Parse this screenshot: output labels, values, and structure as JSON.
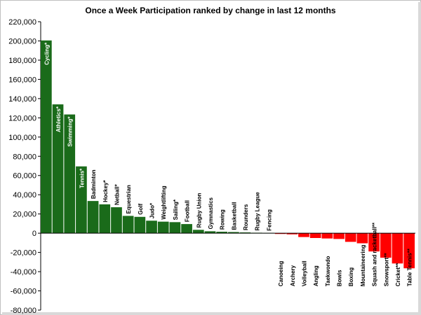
{
  "chart_data": {
    "type": "bar",
    "title": "Once a Week Participation ranked by change in last 12 months",
    "xlabel": "",
    "ylabel": "",
    "ylim": [
      -80000,
      220000
    ],
    "yticks": [
      220000,
      200000,
      180000,
      160000,
      140000,
      120000,
      100000,
      80000,
      60000,
      40000,
      20000,
      0,
      -20000,
      -40000,
      -60000,
      -80000
    ],
    "ytick_labels": [
      "220,000",
      "200,000",
      "180,000",
      "160,000",
      "140,000",
      "120,000",
      "100,000",
      "80,000",
      "60,000",
      "40,000",
      "20,000",
      "0",
      "-20,000",
      "-40,000",
      "-60,000",
      "-80,000"
    ],
    "grid": false,
    "legend": "none",
    "categories": [
      "Cycling*",
      "Athletics*",
      "Swimming*",
      "Tennis*",
      "Badminton",
      "Hockey*",
      "Netball*",
      "Equestrian",
      "Golf",
      "Judo*",
      "Weightlifting",
      "Sailing*",
      "Football",
      "Rugby Union",
      "Gymnastics",
      "Rowing",
      "Basketball",
      "Rounders",
      "Rugby League",
      "Fencing",
      "Canoeing",
      "Archery",
      "Volleyball",
      "Angling",
      "Taekwondo",
      "Bowls",
      "Boxing",
      "Mountaineering",
      "Squash and racketball**",
      "Snowsport**",
      "Cricket**",
      "Table Tennis**"
    ],
    "values": [
      200500,
      134000,
      123500,
      69500,
      33500,
      30000,
      27000,
      18000,
      17000,
      13000,
      12000,
      11500,
      9500,
      3500,
      2000,
      1500,
      1200,
      800,
      500,
      300,
      -800,
      -1200,
      -4000,
      -5000,
      -5500,
      -6000,
      -9000,
      -10500,
      -19000,
      -25500,
      -31500,
      -36500
    ],
    "colors": {
      "positive": "#1a6b1a",
      "negative": "#ff0000",
      "label_on_bar": "#ffffff",
      "label_outside": "#000000"
    }
  }
}
